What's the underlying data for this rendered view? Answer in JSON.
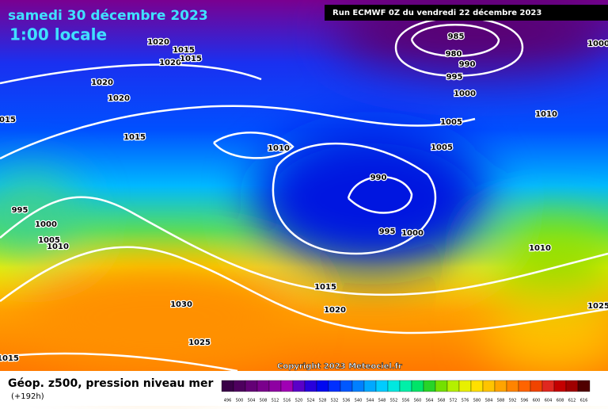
{
  "header": {
    "date": "samedi 30 décembre 2023",
    "time": "1:00 locale",
    "run": "Run ECMWF 0Z du vendredi 22 décembre 2023"
  },
  "copyright": "Copyright 2023 Meteociel.fr",
  "footer": {
    "title": "Géop. z500, pression niveau mer",
    "lead": "(+192h)"
  },
  "isobar_labels": [
    "1020",
    "1015",
    "1020",
    "1015",
    "1020",
    "1020",
    "1015",
    "1015",
    "1010",
    "995",
    "1000",
    "1005",
    "1010",
    "985",
    "980",
    "990",
    "995",
    "1000",
    "1005",
    "1010",
    "1005",
    "990",
    "995",
    "1000",
    "1010",
    "1015",
    "1020",
    "1030",
    "1025",
    "1025",
    "1015",
    "1000"
  ],
  "scale": {
    "values": [
      496,
      500,
      504,
      508,
      512,
      516,
      520,
      524,
      528,
      532,
      536,
      540,
      544,
      548,
      552,
      556,
      560,
      564,
      568,
      572,
      576,
      580,
      584,
      588,
      592,
      596,
      600,
      604,
      608,
      612,
      616
    ],
    "colors": [
      "#3a0048",
      "#4e005e",
      "#640076",
      "#7a008c",
      "#8e00a2",
      "#a000b4",
      "#5a00c8",
      "#2800dc",
      "#0008f0",
      "#0030ff",
      "#0058ff",
      "#0080ff",
      "#00a8ff",
      "#00ccff",
      "#00e8e0",
      "#00f0a8",
      "#00e468",
      "#28d428",
      "#74e000",
      "#b4f000",
      "#e8f000",
      "#ffe000",
      "#ffc400",
      "#ffa400",
      "#ff8400",
      "#ff6400",
      "#f04400",
      "#e02820",
      "#c40000",
      "#a00000",
      "#500000"
    ]
  }
}
